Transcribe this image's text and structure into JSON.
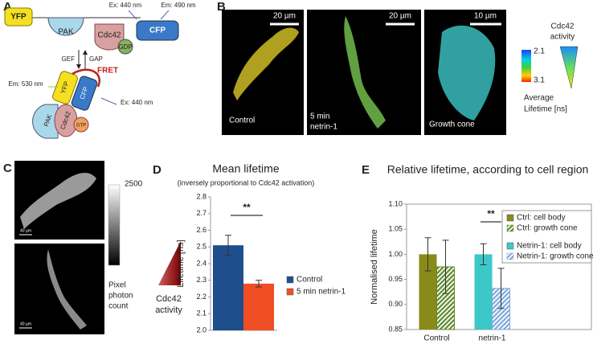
{
  "panels": {
    "letters": [
      "A",
      "B",
      "C",
      "D",
      "E"
    ],
    "a": {
      "top": {
        "yfp": "YFP",
        "pak": "PAK",
        "cdc42": "Cdc42",
        "gdp": "GDP",
        "cfp": "CFP",
        "ex": "Ex: 440 nm",
        "em": "Em: 490 nm"
      },
      "gef": "GEF",
      "gap": "GAP",
      "bottom": {
        "em": "Em: 530 nm",
        "fret": "FRET",
        "ex": "Ex: 440 nm",
        "yfp": "YFP",
        "cfp": "CFP",
        "pak": "PAK",
        "cdc42": "Cdc42",
        "gtp": "GTP"
      }
    },
    "b": {
      "scale_bars": [
        "20 µm",
        "20 µm",
        "10 µm"
      ],
      "image_labels": [
        [
          "Control"
        ],
        [
          "5 min",
          "netrin-1"
        ],
        [
          "Growth cone"
        ]
      ],
      "colorbar_top": 2.1,
      "colorbar_bottom": 3.1,
      "colorbar_label": [
        "Average",
        "Lifetime [ns]"
      ],
      "activity_label": [
        "Cdc42",
        "activity"
      ]
    },
    "c": {
      "scale_bars": [
        "40 µm",
        "40 µm"
      ],
      "colorbar_top": 2500,
      "colorbar_label": [
        "Pixel",
        "photon",
        "count"
      ]
    }
  },
  "chart_data": [
    {
      "type": "bar",
      "title": "Mean lifetime",
      "subtitle": "(inversely proportional to Cdc42 activation)",
      "y_label": "Lifetime [ns]",
      "categories": [
        null
      ],
      "series": [
        {
          "name": "Control",
          "color": "#1f4e8c",
          "values": [
            2.51
          ],
          "errors": [
            0.06
          ]
        },
        {
          "name": "5 min netrin-1",
          "color": "#f04e23",
          "values": [
            2.28
          ],
          "errors": [
            0.02
          ]
        }
      ],
      "ylim": [
        2.0,
        2.8
      ],
      "yticks": [
        {
          "value": 2,
          "label": "2.0"
        },
        2.1,
        2.2,
        2.3,
        2.4,
        2.5,
        2.6,
        2.7,
        2.8
      ],
      "annotations": [
        "**"
      ],
      "side_label": [
        "Cdc42",
        "activity"
      ],
      "grid": false
    },
    {
      "type": "bar",
      "title": "Relative lifetime, according to cell region",
      "y_label": "Normalised lifetime",
      "categories": [
        "Control",
        "netrin-1"
      ],
      "series": [
        {
          "name": "Ctrl: cell body",
          "color": "#8a8a1a",
          "hatch": false,
          "values": [
            1.0,
            null
          ],
          "errors": [
            0.033,
            null
          ]
        },
        {
          "name": "Ctrl: growth cone",
          "color": "#5e8a2a",
          "hatch": true,
          "values": [
            0.975,
            null
          ],
          "errors": [
            0.053,
            null
          ]
        },
        {
          "name": "Netrin-1: cell body",
          "color": "#3cc8c8",
          "hatch": false,
          "values": [
            null,
            1.0
          ],
          "errors": [
            null,
            0.021
          ]
        },
        {
          "name": "Netrin-1: growth cone",
          "color": "#7fa8dc",
          "hatch": true,
          "values": [
            null,
            0.932
          ],
          "errors": [
            null,
            0.04
          ]
        }
      ],
      "ylim": [
        0.85,
        1.1
      ],
      "yticks": [
        {
          "value": 0.85,
          "label": "0.85"
        },
        {
          "value": 0.9,
          "label": "0.90"
        },
        {
          "value": 0.95,
          "label": "0.95"
        },
        {
          "value": 1.0,
          "label": "1.00"
        },
        {
          "value": 1.05,
          "label": "1.05"
        },
        {
          "value": 1.1,
          "label": "1.10"
        }
      ],
      "annotations": [
        "**"
      ],
      "grid": false
    }
  ]
}
